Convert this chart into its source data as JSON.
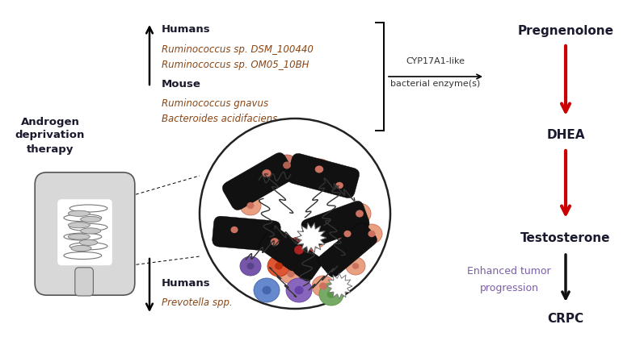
{
  "bg_color": "#ffffff",
  "left_label": "Androgen\ndeprivation\ntherapy",
  "up_humans_header": "Humans",
  "up_humans_species": [
    "Ruminococcus sp. DSM_100440",
    "Ruminococcus sp. OM05_10BH"
  ],
  "mouse_header": "Mouse",
  "mouse_species": [
    "Ruminococcus gnavus",
    "Bacteroides acidifaciens"
  ],
  "down_humans_header": "Humans",
  "down_humans_species": "Prevotella spp.",
  "enzyme_label_1": "CYP17A1-like",
  "enzyme_label_2": "bacterial enzyme(s)",
  "right_labels": [
    "Pregnenolone",
    "DHEA",
    "Testosterone",
    "CRPC"
  ],
  "tumor_label_1": "Enhanced tumor",
  "tumor_label_2": "progression",
  "header_color": "#1a1a2e",
  "species_color": "#8B4513",
  "enzyme_color": "#333333",
  "tumor_color": "#7B5EA7",
  "red_arrow_color": "#CC0000",
  "black_arrow_color": "#111111",
  "text_color_right": "#1a1a2e"
}
